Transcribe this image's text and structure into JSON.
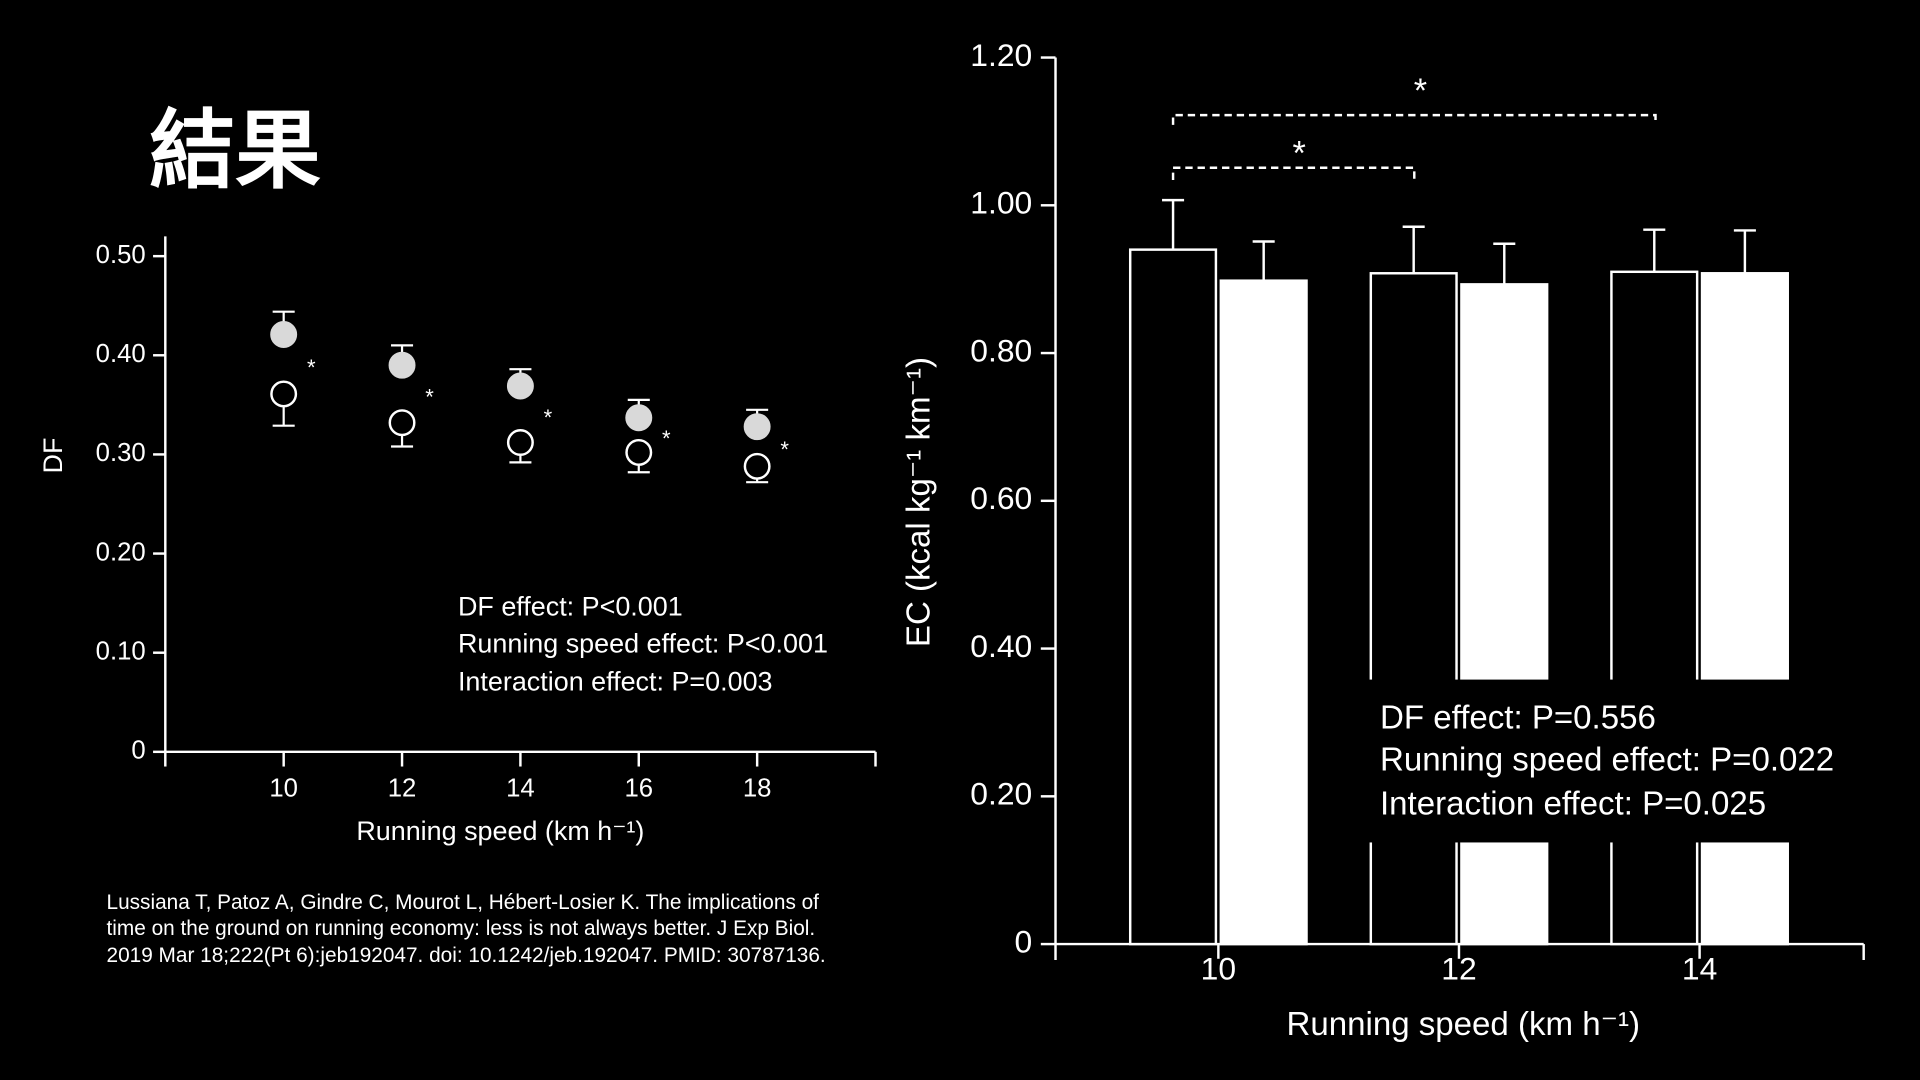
{
  "title": "結果",
  "citation": [
    "Lussiana T, Patoz A, Gindre C, Mourot L, Hébert-Losier K. The implications of",
    "time on the ground on running economy: less is not always better. J Exp Biol.",
    "2019 Mar 18;222(Pt 6):jeb192047. doi: 10.1242/jeb.192047. PMID: 30787136."
  ],
  "chart_data": [
    {
      "type": "scatter",
      "x_label": "Running speed (km h⁻¹)",
      "y_label": "DF",
      "x": [
        10,
        12,
        14,
        16,
        18
      ],
      "xlim": [
        8,
        20
      ],
      "xticks": [
        10,
        12,
        14,
        16,
        18
      ],
      "ylim": [
        0,
        0.52
      ],
      "yticks": [
        0,
        {
          "value": 0.1,
          "label": "0.10"
        },
        {
          "value": 0.2,
          "label": "0.20"
        },
        {
          "value": 0.3,
          "label": "0.30"
        },
        {
          "value": 0.4,
          "label": "0.40"
        },
        {
          "value": 0.5,
          "label": "0.50"
        }
      ],
      "series": [
        {
          "color": "#d9d9d9",
          "marker": "filled",
          "error_direction": "up",
          "values": [
            0.421,
            0.39,
            0.369,
            0.337,
            0.328
          ],
          "errors": [
            0.023,
            0.02,
            0.017,
            0.018,
            0.017
          ]
        },
        {
          "color": "#ffffff",
          "marker": "open",
          "error_direction": "down",
          "values": [
            0.361,
            0.332,
            0.312,
            0.302,
            0.288
          ],
          "errors": [
            0.032,
            0.024,
            0.02,
            0.02,
            0.016
          ]
        }
      ],
      "annotations": [
        "*",
        "*",
        "*",
        "*",
        "*"
      ],
      "stats": [
        "DF effect: P<0.001",
        "Running speed effect: P<0.001",
        "Interaction effect: P=0.003"
      ]
    },
    {
      "type": "bar",
      "x_label": "Running speed (km h⁻¹)",
      "y_label": "EC (kcal kg⁻¹ km⁻¹)",
      "categories": [
        "10",
        "12",
        "14"
      ],
      "ylim": [
        0,
        1.2
      ],
      "yticks": [
        0,
        {
          "value": 0.2,
          "label": "0.20"
        },
        {
          "value": 0.4,
          "label": "0.40"
        },
        {
          "value": 0.6,
          "label": "0.60"
        },
        {
          "value": 0.8,
          "label": "0.80"
        },
        {
          "value": 1.0,
          "label": "1.00"
        },
        {
          "value": 1.2,
          "label": "1.20"
        }
      ],
      "series": [
        {
          "color": "#000000",
          "values": [
            0.94,
            0.908,
            0.91
          ],
          "errors": [
            0.067,
            0.063,
            0.057
          ]
        },
        {
          "color": "#ffffff",
          "values": [
            0.898,
            0.893,
            0.908
          ],
          "errors": [
            0.053,
            0.055,
            0.058
          ]
        }
      ],
      "annotations": [
        "*",
        "*"
      ],
      "stats": [
        "DF effect: P=0.556",
        "Running speed effect: P=0.022",
        "Interaction effect: P=0.025"
      ]
    }
  ]
}
